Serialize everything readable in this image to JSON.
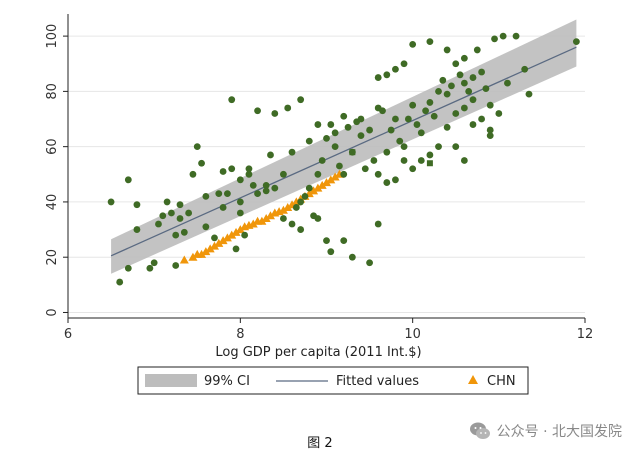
{
  "chart_data": {
    "type": "scatter",
    "title": "",
    "xlabel": "Log GDP per capita (2011 Int.$)",
    "ylabel": "",
    "xlim": [
      6,
      12
    ],
    "ylim": [
      -2,
      108
    ],
    "x_ticks": [
      6,
      8,
      10,
      12
    ],
    "y_ticks": [
      0,
      20,
      40,
      60,
      80,
      100
    ],
    "grid": true,
    "legend_position": "bottom",
    "legend": [
      "99% CI",
      "Fitted values",
      "CHN"
    ],
    "fit_line": {
      "x": [
        6.5,
        11.9
      ],
      "y": [
        20.5,
        96
      ]
    },
    "ci_band": {
      "x": [
        6.5,
        11.9
      ],
      "lower": [
        14,
        89
      ],
      "upper": [
        26.5,
        106
      ]
    },
    "series": [
      {
        "name": "CHN",
        "marker": "triangle",
        "color": "#f0960a",
        "points": [
          [
            7.35,
            19
          ],
          [
            7.45,
            20
          ],
          [
            7.5,
            21
          ],
          [
            7.55,
            21
          ],
          [
            7.6,
            22
          ],
          [
            7.65,
            23
          ],
          [
            7.7,
            24
          ],
          [
            7.75,
            25
          ],
          [
            7.8,
            26
          ],
          [
            7.85,
            27
          ],
          [
            7.9,
            28
          ],
          [
            7.95,
            29
          ],
          [
            8.0,
            30
          ],
          [
            8.05,
            31
          ],
          [
            8.1,
            31.5
          ],
          [
            8.15,
            32
          ],
          [
            8.2,
            33
          ],
          [
            8.25,
            33
          ],
          [
            8.3,
            34
          ],
          [
            8.35,
            35
          ],
          [
            8.4,
            36
          ],
          [
            8.45,
            36.5
          ],
          [
            8.5,
            37
          ],
          [
            8.55,
            38
          ],
          [
            8.6,
            39
          ],
          [
            8.65,
            40
          ],
          [
            8.7,
            41
          ],
          [
            8.75,
            42
          ],
          [
            8.8,
            43
          ],
          [
            8.85,
            44
          ],
          [
            8.9,
            45
          ],
          [
            8.95,
            46
          ],
          [
            9.0,
            47
          ],
          [
            9.05,
            48
          ],
          [
            9.1,
            49
          ],
          [
            9.15,
            50
          ]
        ]
      },
      {
        "name": "",
        "marker": "circle",
        "color": "#3f6b25",
        "points": [
          [
            6.5,
            40
          ],
          [
            6.6,
            11
          ],
          [
            6.7,
            16
          ],
          [
            6.7,
            48
          ],
          [
            6.8,
            39
          ],
          [
            6.8,
            30
          ],
          [
            6.95,
            16
          ],
          [
            7.0,
            18
          ],
          [
            7.05,
            32
          ],
          [
            7.1,
            35
          ],
          [
            7.15,
            40
          ],
          [
            7.2,
            36
          ],
          [
            7.25,
            28
          ],
          [
            7.25,
            17
          ],
          [
            7.3,
            34
          ],
          [
            7.35,
            29
          ],
          [
            7.4,
            36
          ],
          [
            7.45,
            50
          ],
          [
            7.5,
            60
          ],
          [
            7.55,
            54
          ],
          [
            7.6,
            31
          ],
          [
            7.7,
            27
          ],
          [
            7.75,
            43
          ],
          [
            7.8,
            51
          ],
          [
            7.85,
            43
          ],
          [
            7.9,
            52
          ],
          [
            7.95,
            23
          ],
          [
            8.0,
            36
          ],
          [
            8.05,
            28
          ],
          [
            8.1,
            50
          ],
          [
            8.15,
            46
          ],
          [
            8.2,
            43
          ],
          [
            8.3,
            44
          ],
          [
            8.35,
            57
          ],
          [
            8.4,
            45
          ],
          [
            8.5,
            50
          ],
          [
            8.55,
            74
          ],
          [
            8.6,
            32
          ],
          [
            8.65,
            38
          ],
          [
            8.7,
            40
          ],
          [
            8.75,
            42
          ],
          [
            8.8,
            45
          ],
          [
            8.85,
            35
          ],
          [
            8.9,
            50
          ],
          [
            8.95,
            55
          ],
          [
            9.0,
            63
          ],
          [
            9.05,
            68
          ],
          [
            9.1,
            60
          ],
          [
            9.15,
            53
          ],
          [
            9.2,
            50
          ],
          [
            9.25,
            67
          ],
          [
            9.3,
            58
          ],
          [
            9.35,
            69
          ],
          [
            9.4,
            64
          ],
          [
            9.45,
            52
          ],
          [
            9.5,
            66
          ],
          [
            9.55,
            55
          ],
          [
            9.6,
            50
          ],
          [
            9.65,
            73
          ],
          [
            9.7,
            47
          ],
          [
            9.75,
            66
          ],
          [
            9.8,
            70
          ],
          [
            9.85,
            62
          ],
          [
            9.9,
            60
          ],
          [
            9.95,
            70
          ],
          [
            10.0,
            75
          ],
          [
            10.05,
            68
          ],
          [
            10.1,
            65
          ],
          [
            10.15,
            73
          ],
          [
            10.2,
            76
          ],
          [
            10.25,
            71
          ],
          [
            10.3,
            80
          ],
          [
            10.35,
            84
          ],
          [
            10.4,
            79
          ],
          [
            10.45,
            82
          ],
          [
            10.5,
            90
          ],
          [
            10.55,
            86
          ],
          [
            10.6,
            83
          ],
          [
            10.65,
            80
          ],
          [
            10.7,
            77
          ],
          [
            10.75,
            95
          ],
          [
            10.8,
            87
          ],
          [
            10.85,
            81
          ],
          [
            10.9,
            75
          ],
          [
            10.95,
            99
          ],
          [
            11.05,
            100
          ],
          [
            11.1,
            83
          ],
          [
            11.2,
            100
          ],
          [
            11.3,
            88
          ],
          [
            11.35,
            79
          ],
          [
            11.9,
            98
          ],
          [
            7.9,
            77
          ],
          [
            8.2,
            73
          ],
          [
            8.4,
            72
          ],
          [
            8.7,
            77
          ],
          [
            8.9,
            68
          ],
          [
            9.0,
            26
          ],
          [
            9.05,
            22
          ],
          [
            9.2,
            26
          ],
          [
            9.3,
            20
          ],
          [
            9.5,
            18
          ],
          [
            9.6,
            32
          ],
          [
            9.7,
            58
          ],
          [
            9.8,
            48
          ],
          [
            9.9,
            55
          ],
          [
            10.0,
            52
          ],
          [
            10.1,
            55
          ],
          [
            10.2,
            57
          ],
          [
            10.3,
            60
          ],
          [
            10.4,
            67
          ],
          [
            10.5,
            72
          ],
          [
            10.6,
            74
          ],
          [
            10.7,
            68
          ],
          [
            10.8,
            70
          ],
          [
            10.9,
            66
          ],
          [
            11.0,
            72
          ],
          [
            10.2,
            98
          ],
          [
            10.0,
            97
          ],
          [
            9.9,
            90
          ],
          [
            9.8,
            88
          ],
          [
            9.7,
            86
          ],
          [
            9.6,
            85
          ],
          [
            10.4,
            95
          ],
          [
            10.6,
            92
          ],
          [
            10.7,
            85
          ],
          [
            10.5,
            60
          ],
          [
            10.6,
            55
          ],
          [
            10.9,
            64
          ],
          [
            8.0,
            48
          ],
          [
            8.1,
            52
          ],
          [
            8.6,
            58
          ],
          [
            8.8,
            62
          ],
          [
            9.1,
            65
          ],
          [
            9.2,
            71
          ],
          [
            9.4,
            70
          ],
          [
            9.6,
            74
          ],
          [
            7.3,
            39
          ],
          [
            7.6,
            42
          ],
          [
            7.8,
            38
          ],
          [
            8.0,
            40
          ],
          [
            8.3,
            46
          ],
          [
            8.5,
            34
          ],
          [
            8.7,
            30
          ],
          [
            8.9,
            34
          ]
        ]
      },
      {
        "name": "",
        "marker": "square",
        "color": "#3f6b25",
        "points": [
          [
            10.2,
            54
          ],
          [
            9.3,
            58
          ]
        ]
      }
    ]
  },
  "caption": "图 2",
  "watermark": {
    "text": "公众号 · 北大国发院",
    "icon": "wechat-icon"
  },
  "colors": {
    "ci_band": "#bdbdbd",
    "fit_line": "#5a6a82",
    "points_green": "#3f6b25",
    "chn_orange": "#f0960a",
    "grid": "#e6e6e6"
  }
}
